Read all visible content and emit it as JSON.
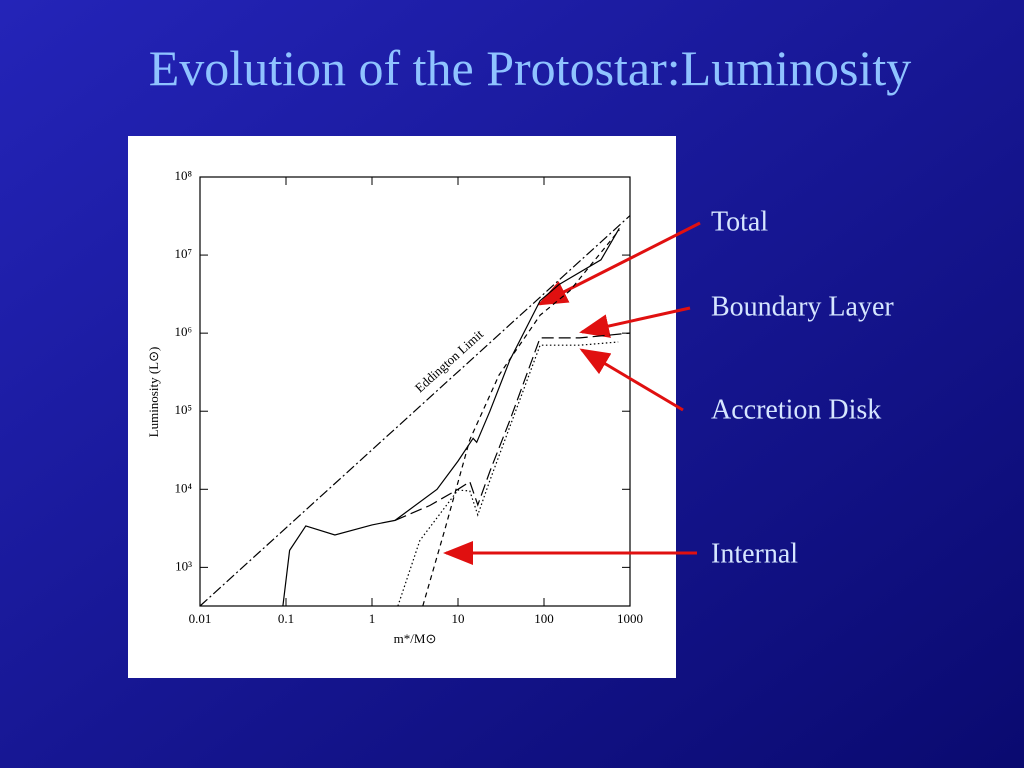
{
  "title": "Evolution of the Protostar:Luminosity",
  "chart_data": {
    "type": "line",
    "x_label": "m*/M⊙",
    "y_label": "Luminosity (L⊙)",
    "xscale": "log",
    "yscale": "log",
    "xlim": [
      0.01,
      1000
    ],
    "ylim": [
      320,
      100000000
    ],
    "xticks": [
      0.01,
      0.1,
      1,
      10,
      100,
      1000
    ],
    "yticks": [
      {
        "value": 1000,
        "label": "10³"
      },
      {
        "value": 10000,
        "label": "10⁴"
      },
      {
        "value": 100000,
        "label": "10⁵"
      },
      {
        "value": 1000000,
        "label": "10⁶"
      },
      {
        "value": 10000000,
        "label": "10⁷"
      },
      {
        "value": 100000000,
        "label": "10⁸"
      }
    ],
    "series": [
      {
        "name": "Total",
        "color": "#000000",
        "dash": "solid",
        "x": [
          0.092,
          0.11,
          0.17,
          0.37,
          1,
          1.85,
          5.7,
          10,
          15,
          16.5,
          23.5,
          40,
          90,
          150,
          460,
          750
        ],
        "values": [
          320,
          1650,
          3400,
          2600,
          3500,
          4000,
          10000,
          23000,
          45000,
          40000,
          100000,
          450000,
          2600000,
          4200000,
          8700000,
          22000000
        ]
      },
      {
        "name": "Boundary Layer",
        "color": "#000000",
        "dash": "long",
        "x": [
          1.85,
          4.7,
          10,
          13.7,
          17,
          23.5,
          40,
          90,
          260,
          1000
        ],
        "values": [
          4000,
          6200,
          10000,
          12500,
          6300,
          17000,
          76000,
          870000,
          870000,
          1000000
        ]
      },
      {
        "name": "Accretion Disk",
        "color": "#000000",
        "dash": "dotted",
        "x": [
          2,
          3.6,
          10,
          13.7,
          17,
          23.5,
          90,
          260,
          730
        ],
        "values": [
          320,
          2200,
          9800,
          9500,
          4700,
          13000,
          700000,
          700000,
          770000
        ]
      },
      {
        "name": "Internal",
        "color": "#000000",
        "dash": "short",
        "x": [
          3.9,
          7,
          13.7,
          30,
          90,
          200,
          750
        ],
        "values": [
          320,
          3000,
          43000,
          290000,
          1700000,
          3500000,
          21000000
        ]
      },
      {
        "name": "Eddington Limit",
        "color": "#000000",
        "dash": "dashdot",
        "x": [
          0.01,
          1000
        ],
        "values": [
          320,
          32000000
        ]
      }
    ]
  }
}
